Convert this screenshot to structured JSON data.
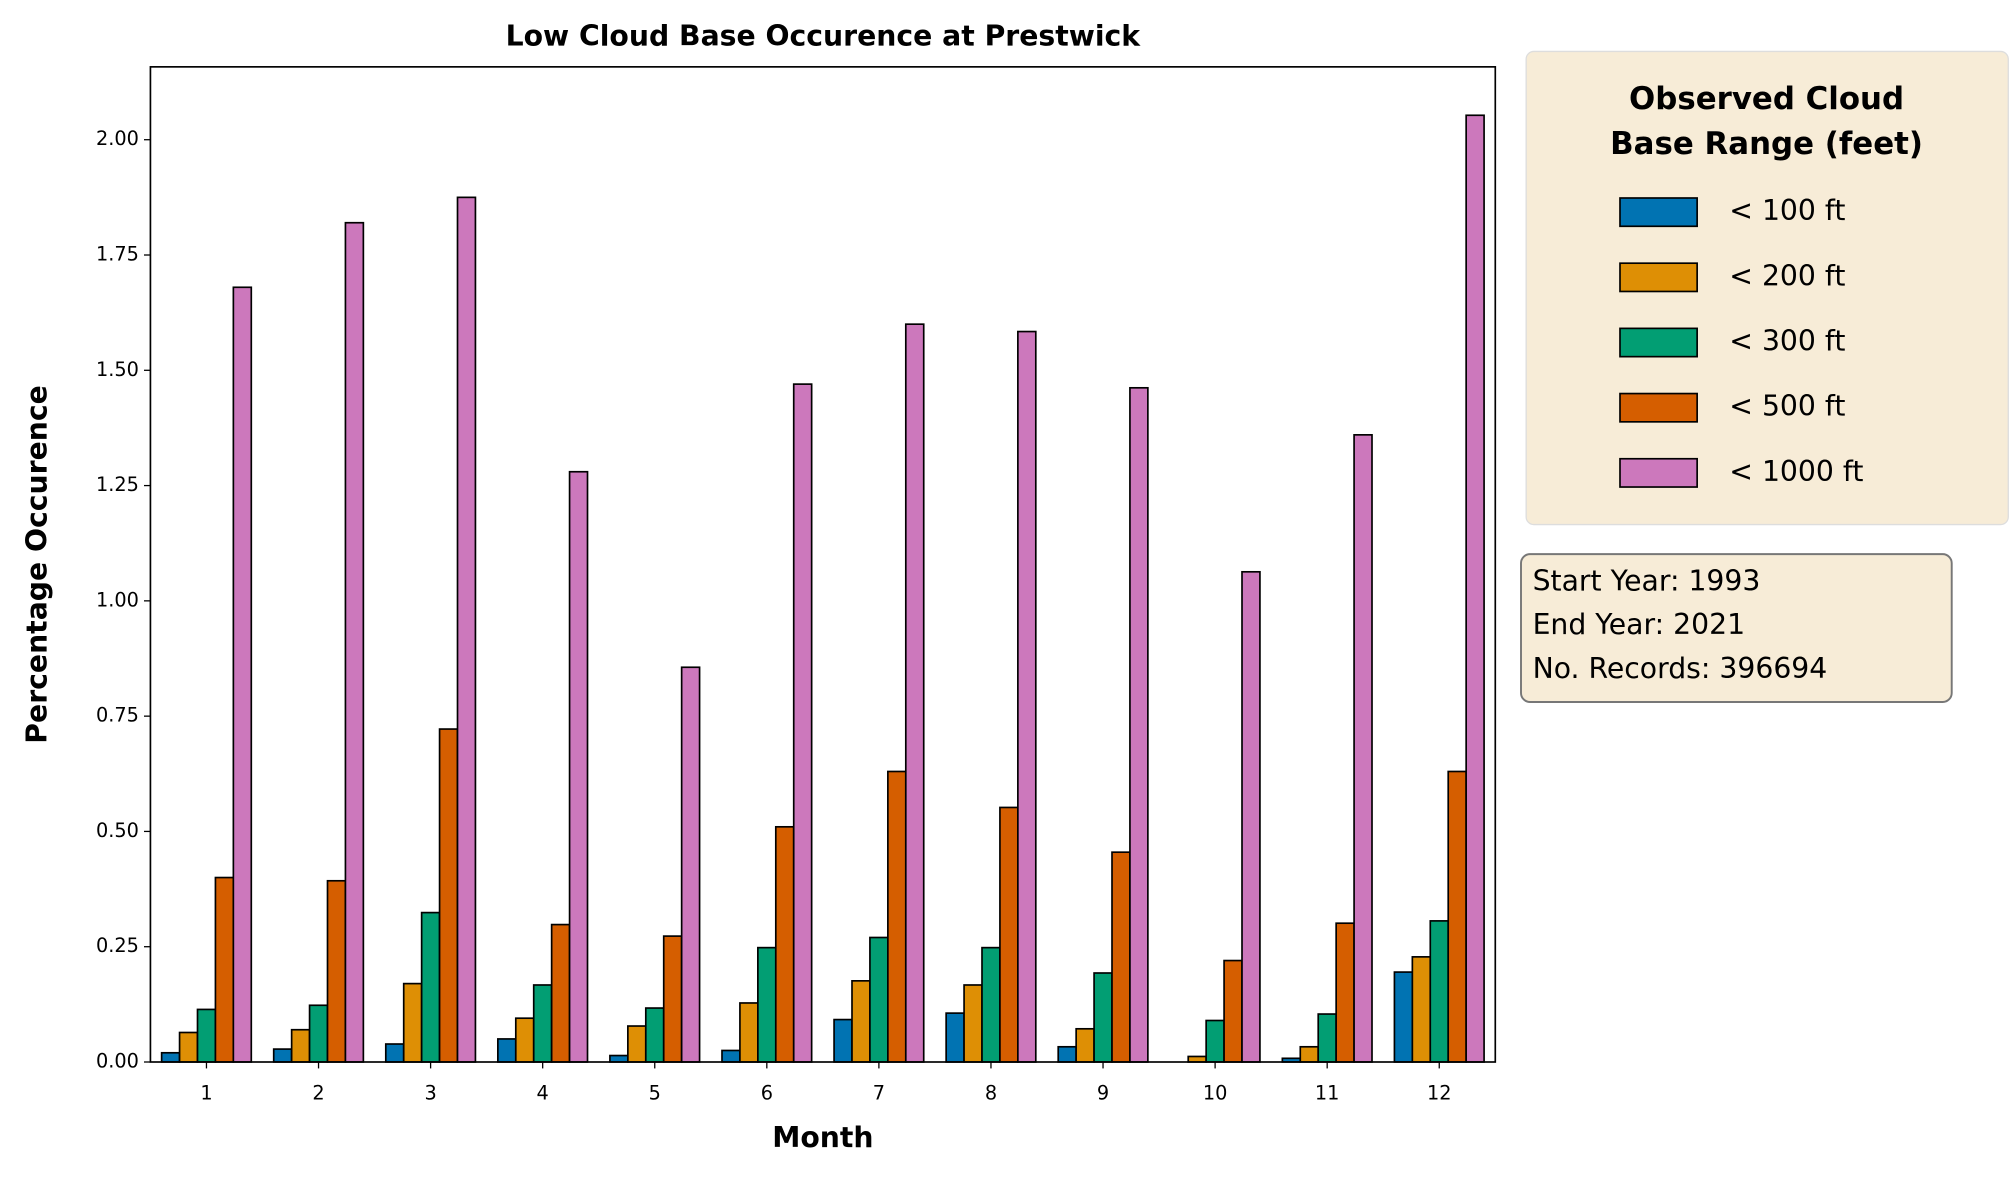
{
  "chart_data": {
    "type": "bar",
    "title": "Low Cloud Base Occurence at Prestwick",
    "x_label": "Month",
    "y_label": "Percentage Occurence",
    "x": [
      1,
      2,
      3,
      4,
      5,
      6,
      7,
      8,
      9,
      10,
      11,
      12
    ],
    "xlim": [
      0.5,
      12.5
    ],
    "xticks": [
      1,
      2,
      3,
      4,
      5,
      6,
      7,
      8,
      9,
      10,
      11,
      12
    ],
    "ylim": [
      0,
      2.158
    ],
    "yticks": [
      {
        "value": 0,
        "label": "0.00"
      },
      {
        "value": 0.25,
        "label": "0.25"
      },
      {
        "value": 0.5,
        "label": "0.50"
      },
      {
        "value": 0.75,
        "label": "0.75"
      },
      {
        "value": 1,
        "label": "1.00"
      },
      {
        "value": 1.25,
        "label": "1.25"
      },
      {
        "value": 1.5,
        "label": "1.50"
      },
      {
        "value": 1.75,
        "label": "1.75"
      },
      {
        "value": 2,
        "label": "2.00"
      }
    ],
    "legend_title": [
      "Observed Cloud",
      "Base Range (feet)"
    ],
    "legend_position": "outside right",
    "series": [
      {
        "name": "< 100 ft",
        "color": "#0173b2",
        "values": [
          0.02,
          0.028,
          0.039,
          0.05,
          0.014,
          0.025,
          0.092,
          0.106,
          0.033,
          0,
          0.008,
          0.195
        ]
      },
      {
        "name": "< 200 ft",
        "color": "#de8f05",
        "values": [
          0.064,
          0.07,
          0.17,
          0.095,
          0.078,
          0.128,
          0.176,
          0.167,
          0.072,
          0.012,
          0.033,
          0.228
        ]
      },
      {
        "name": "< 300 ft",
        "color": "#029e73",
        "values": [
          0.114,
          0.123,
          0.324,
          0.167,
          0.117,
          0.248,
          0.27,
          0.248,
          0.193,
          0.09,
          0.104,
          0.306
        ]
      },
      {
        "name": "< 500 ft",
        "color": "#d55e00",
        "values": [
          0.4,
          0.393,
          0.722,
          0.298,
          0.273,
          0.51,
          0.63,
          0.552,
          0.455,
          0.22,
          0.301,
          0.63
        ]
      },
      {
        "name": "< 1000 ft",
        "color": "#cc78bc",
        "values": [
          1.68,
          1.82,
          1.875,
          1.28,
          0.856,
          1.47,
          1.6,
          1.584,
          1.462,
          1.063,
          1.36,
          2.053
        ]
      }
    ],
    "annotation": [
      "Start Year: 1993",
      "End Year: 2021",
      "No. Records: 396694"
    ]
  }
}
